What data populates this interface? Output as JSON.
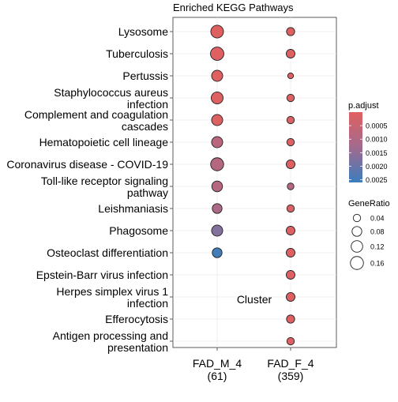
{
  "chart_data": {
    "type": "scatter",
    "title": "Enriched KEGG Pathways",
    "xlabel": "Cluster",
    "ylabel": "",
    "clusters": [
      {
        "line1": "FAD_M_4",
        "line2": "(61)"
      },
      {
        "line1": "FAD_F_4",
        "line2": "(359)"
      }
    ],
    "pathways": [
      [
        "Lysosome"
      ],
      [
        "Tuberculosis"
      ],
      [
        "Pertussis"
      ],
      [
        "Staphylococcus aureus",
        "infection"
      ],
      [
        "Complement and coagulation",
        "cascades"
      ],
      [
        "Hematopoietic cell lineage"
      ],
      [
        "Coronavirus disease - COVID-19"
      ],
      [
        "Toll-like receptor signaling",
        "pathway"
      ],
      [
        "Leishmaniasis"
      ],
      [
        "Phagosome"
      ],
      [
        "Osteoclast differentiation"
      ],
      [
        "Epstein-Barr virus infection"
      ],
      [
        "Herpes simplex virus 1",
        "infection"
      ],
      [
        "Efferocytosis"
      ],
      [
        "Antigen processing and",
        "presentation"
      ]
    ],
    "points": [
      {
        "cluster": 0,
        "pathway": 0,
        "gene_ratio": 0.15,
        "p_adjust": 1e-05
      },
      {
        "cluster": 0,
        "pathway": 1,
        "gene_ratio": 0.17,
        "p_adjust": 2e-05
      },
      {
        "cluster": 0,
        "pathway": 2,
        "gene_ratio": 0.11,
        "p_adjust": 3e-05
      },
      {
        "cluster": 0,
        "pathway": 3,
        "gene_ratio": 0.13,
        "p_adjust": 4e-05
      },
      {
        "cluster": 0,
        "pathway": 4,
        "gene_ratio": 0.11,
        "p_adjust": 8e-05
      },
      {
        "cluster": 0,
        "pathway": 5,
        "gene_ratio": 0.11,
        "p_adjust": 0.0008
      },
      {
        "cluster": 0,
        "pathway": 6,
        "gene_ratio": 0.16,
        "p_adjust": 0.0009
      },
      {
        "cluster": 0,
        "pathway": 7,
        "gene_ratio": 0.1,
        "p_adjust": 0.0009
      },
      {
        "cluster": 0,
        "pathway": 8,
        "gene_ratio": 0.08,
        "p_adjust": 0.0011
      },
      {
        "cluster": 0,
        "pathway": 9,
        "gene_ratio": 0.11,
        "p_adjust": 0.0017
      },
      {
        "cluster": 0,
        "pathway": 10,
        "gene_ratio": 0.08,
        "p_adjust": 0.0025
      },
      {
        "cluster": 1,
        "pathway": 0,
        "gene_ratio": 0.05,
        "p_adjust": 2e-05
      },
      {
        "cluster": 1,
        "pathway": 1,
        "gene_ratio": 0.06,
        "p_adjust": 2e-05
      },
      {
        "cluster": 1,
        "pathway": 2,
        "gene_ratio": 0.02,
        "p_adjust": 0.0001
      },
      {
        "cluster": 1,
        "pathway": 3,
        "gene_ratio": 0.04,
        "p_adjust": 0.0001
      },
      {
        "cluster": 1,
        "pathway": 4,
        "gene_ratio": 0.04,
        "p_adjust": 0.0001
      },
      {
        "cluster": 1,
        "pathway": 5,
        "gene_ratio": 0.04,
        "p_adjust": 0.0001
      },
      {
        "cluster": 1,
        "pathway": 6,
        "gene_ratio": 0.06,
        "p_adjust": 5e-05
      },
      {
        "cluster": 1,
        "pathway": 7,
        "gene_ratio": 0.03,
        "p_adjust": 0.0009
      },
      {
        "cluster": 1,
        "pathway": 8,
        "gene_ratio": 0.04,
        "p_adjust": 0.0001
      },
      {
        "cluster": 1,
        "pathway": 9,
        "gene_ratio": 0.06,
        "p_adjust": 0.0001
      },
      {
        "cluster": 1,
        "pathway": 10,
        "gene_ratio": 0.06,
        "p_adjust": 5e-05
      },
      {
        "cluster": 1,
        "pathway": 11,
        "gene_ratio": 0.06,
        "p_adjust": 5e-05
      },
      {
        "cluster": 1,
        "pathway": 12,
        "gene_ratio": 0.06,
        "p_adjust": 5e-05
      },
      {
        "cluster": 1,
        "pathway": 13,
        "gene_ratio": 0.05,
        "p_adjust": 5e-05
      },
      {
        "cluster": 1,
        "pathway": 14,
        "gene_ratio": 0.04,
        "p_adjust": 5e-05
      }
    ],
    "color_legend": {
      "title": "p.adjust",
      "ticks": [
        0.0005,
        0.001,
        0.0015,
        0.002,
        0.0025
      ],
      "tick_labels": [
        "0.0005",
        "0.0010",
        "0.0015",
        "0.0020",
        "0.0025"
      ],
      "range": [
        0,
        0.0026
      ],
      "low_color": "#E06060",
      "mid_color": "#A26A8E",
      "high_color": "#3A7DBE"
    },
    "size_legend": {
      "title": "GeneRatio",
      "values": [
        0.04,
        0.08,
        0.12,
        0.16
      ],
      "labels": [
        "0.04",
        "0.08",
        "0.12",
        "0.16"
      ]
    },
    "grid": true
  }
}
